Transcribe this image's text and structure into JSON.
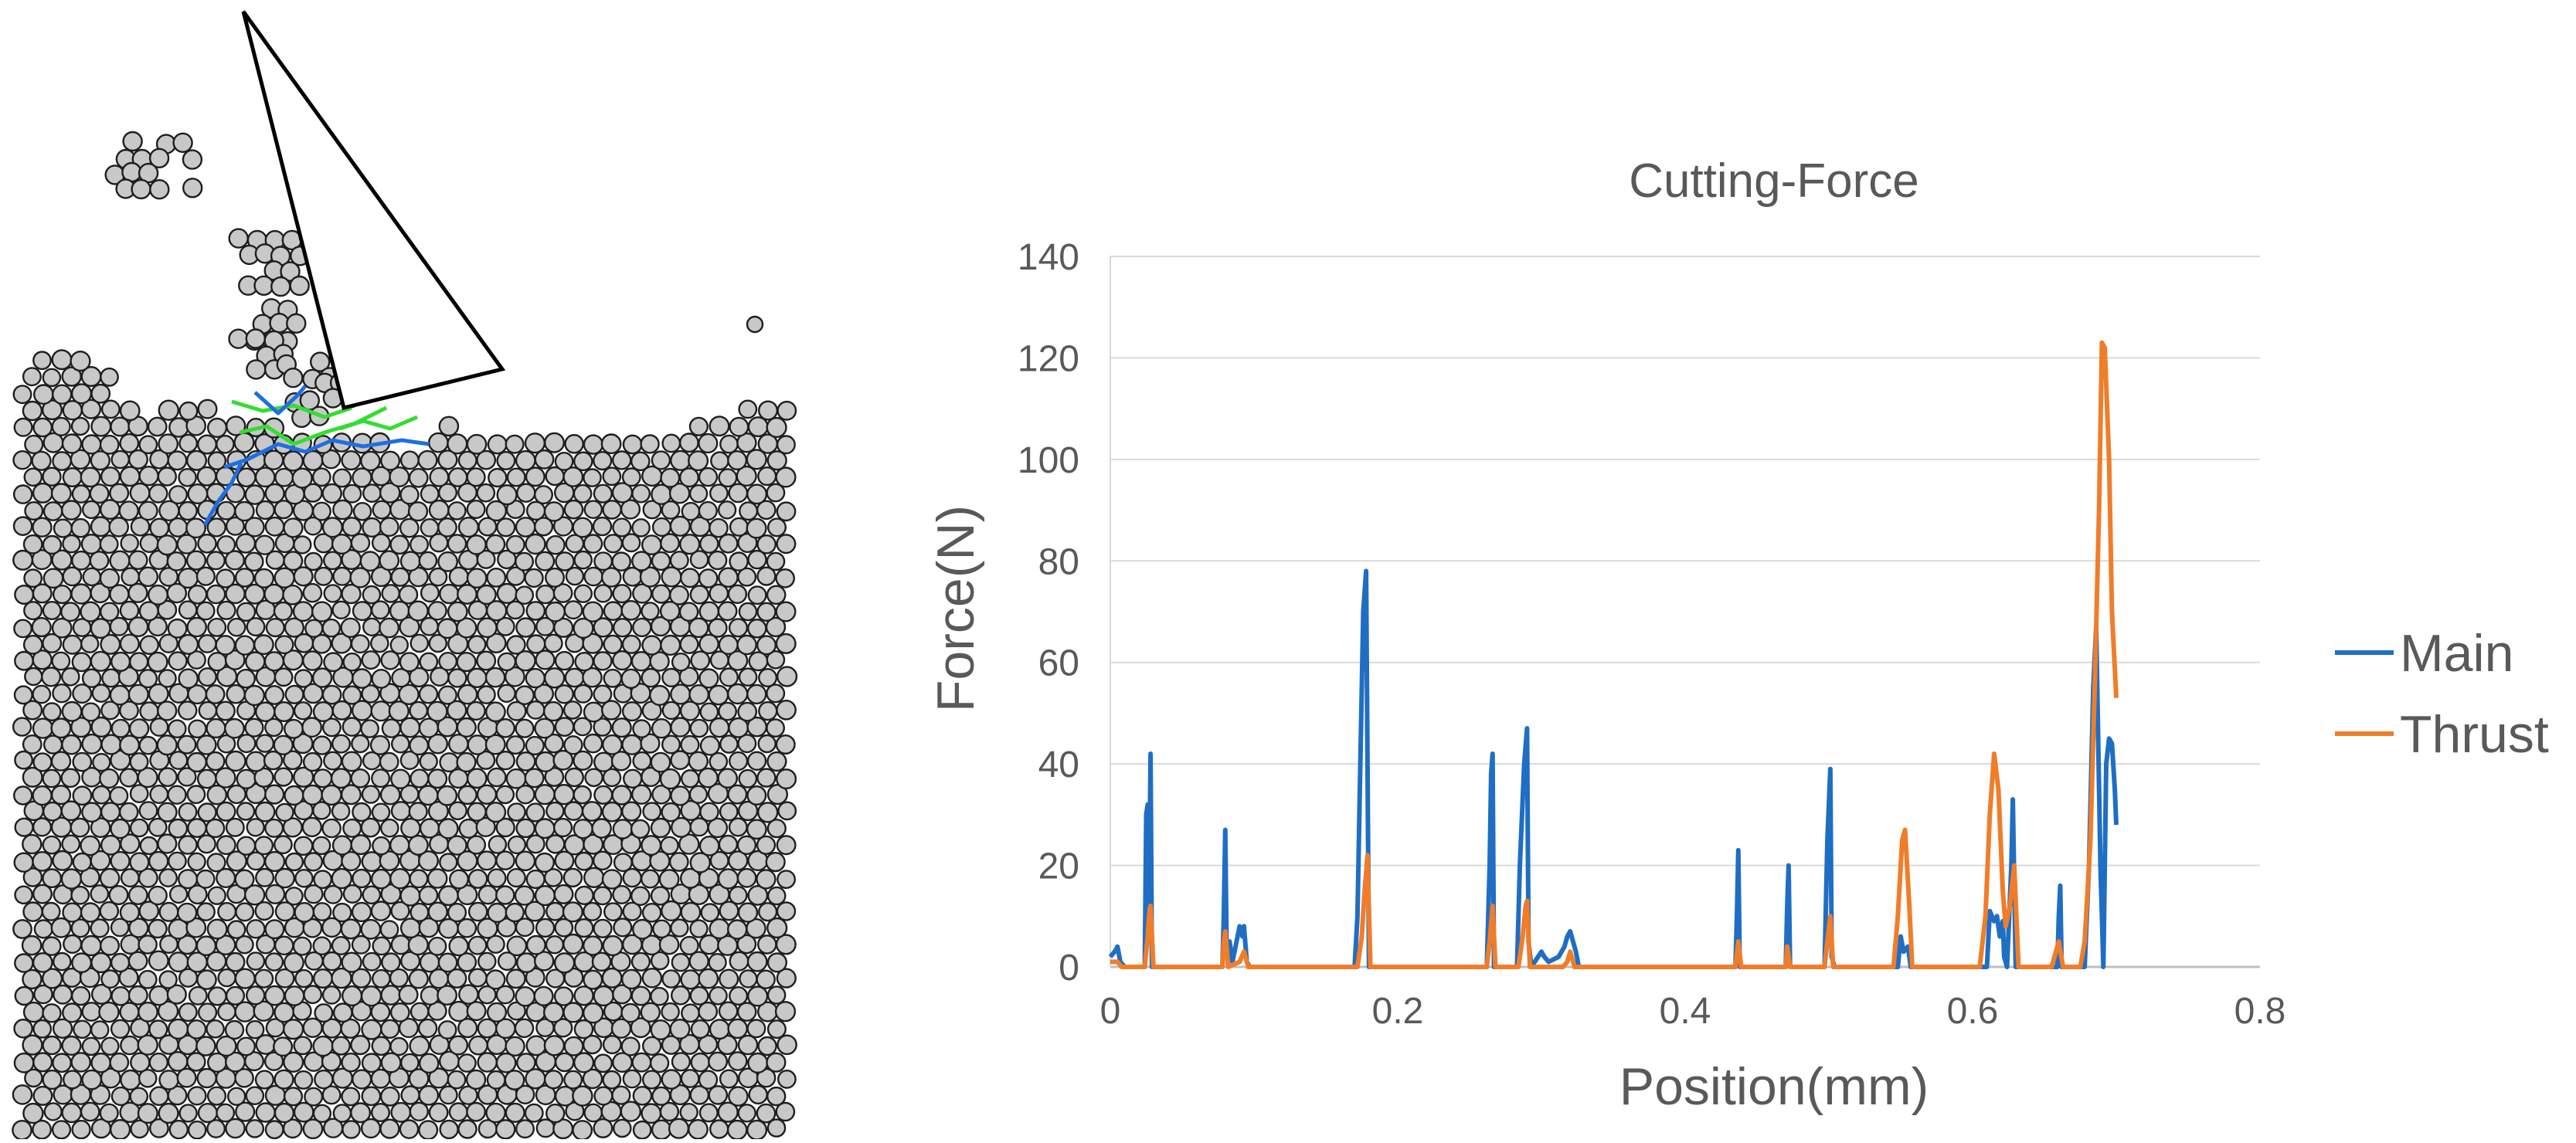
{
  "simulation": {
    "particle_fill": "#c8c8c8",
    "particle_stroke": "#1e1e1e",
    "tool_stroke": "#000000",
    "tool_fill": "#ffffff",
    "crack_colors": {
      "primary": "#1f6fe0",
      "secondary": "#33dd33"
    }
  },
  "chart_data": {
    "type": "line",
    "title": "Cutting-Force",
    "xlabel": "Position(mm)",
    "ylabel": "Force(N)",
    "xlim": [
      0,
      0.8
    ],
    "ylim": [
      0,
      140
    ],
    "xticks": [
      0,
      0.2,
      0.4,
      0.6,
      0.8
    ],
    "xtick_labels": [
      "0",
      "0.2",
      "0.4",
      "0.6",
      "0.8"
    ],
    "yticks": [
      0,
      20,
      40,
      60,
      80,
      100,
      120,
      140
    ],
    "ytick_labels": [
      "0",
      "20",
      "40",
      "60",
      "80",
      "100",
      "120",
      "140"
    ],
    "grid": "horizontal",
    "legend": "right",
    "series": [
      {
        "name": "Main",
        "color": "#1f6ec4",
        "points": [
          [
            0,
            2
          ],
          [
            0.003,
            3
          ],
          [
            0.005,
            4
          ],
          [
            0.007,
            1
          ],
          [
            0.01,
            0
          ],
          [
            0.024,
            0
          ],
          [
            0.025,
            30
          ],
          [
            0.026,
            32
          ],
          [
            0.027,
            12
          ],
          [
            0.028,
            42
          ],
          [
            0.029,
            0
          ],
          [
            0.078,
            0
          ],
          [
            0.079,
            10
          ],
          [
            0.08,
            27
          ],
          [
            0.081,
            2
          ],
          [
            0.083,
            5
          ],
          [
            0.085,
            1
          ],
          [
            0.09,
            8
          ],
          [
            0.092,
            6
          ],
          [
            0.093,
            8
          ],
          [
            0.095,
            1
          ],
          [
            0.097,
            0
          ],
          [
            0.17,
            0
          ],
          [
            0.172,
            10
          ],
          [
            0.174,
            40
          ],
          [
            0.176,
            70
          ],
          [
            0.178,
            78
          ],
          [
            0.18,
            0
          ],
          [
            0.262,
            0
          ],
          [
            0.264,
            20
          ],
          [
            0.265,
            38
          ],
          [
            0.266,
            42
          ],
          [
            0.267,
            0
          ],
          [
            0.283,
            0
          ],
          [
            0.285,
            20
          ],
          [
            0.288,
            40
          ],
          [
            0.29,
            47
          ],
          [
            0.291,
            5
          ],
          [
            0.293,
            0
          ],
          [
            0.3,
            3
          ],
          [
            0.302,
            2
          ],
          [
            0.305,
            1
          ],
          [
            0.312,
            2
          ],
          [
            0.316,
            4
          ],
          [
            0.318,
            6
          ],
          [
            0.32,
            7
          ],
          [
            0.322,
            5
          ],
          [
            0.324,
            3
          ],
          [
            0.326,
            0
          ],
          [
            0.435,
            0
          ],
          [
            0.436,
            10
          ],
          [
            0.437,
            23
          ],
          [
            0.438,
            0
          ],
          [
            0.47,
            0
          ],
          [
            0.471,
            12
          ],
          [
            0.472,
            20
          ],
          [
            0.473,
            0
          ],
          [
            0.497,
            0
          ],
          [
            0.499,
            25
          ],
          [
            0.501,
            39
          ],
          [
            0.502,
            2
          ],
          [
            0.504,
            0
          ],
          [
            0.548,
            0
          ],
          [
            0.55,
            6
          ],
          [
            0.552,
            3
          ],
          [
            0.555,
            4
          ],
          [
            0.557,
            0
          ],
          [
            0.61,
            0
          ],
          [
            0.612,
            11
          ],
          [
            0.615,
            9
          ],
          [
            0.617,
            10
          ],
          [
            0.619,
            6
          ],
          [
            0.621,
            9
          ],
          [
            0.622,
            2
          ],
          [
            0.624,
            0
          ],
          [
            0.627,
            20
          ],
          [
            0.628,
            33
          ],
          [
            0.63,
            0
          ],
          [
            0.659,
            0
          ],
          [
            0.66,
            10
          ],
          [
            0.661,
            16
          ],
          [
            0.662,
            0
          ],
          [
            0.678,
            0
          ],
          [
            0.681,
            20
          ],
          [
            0.684,
            55
          ],
          [
            0.686,
            67
          ],
          [
            0.689,
            20
          ],
          [
            0.691,
            0
          ],
          [
            0.693,
            40
          ],
          [
            0.695,
            45
          ],
          [
            0.697,
            44
          ],
          [
            0.699,
            35
          ],
          [
            0.7,
            28
          ]
        ]
      },
      {
        "name": "Thrust",
        "color": "#f07d2a",
        "points": [
          [
            0,
            1
          ],
          [
            0.005,
            1
          ],
          [
            0.008,
            0
          ],
          [
            0.024,
            0
          ],
          [
            0.026,
            6
          ],
          [
            0.027,
            10
          ],
          [
            0.028,
            12
          ],
          [
            0.03,
            0
          ],
          [
            0.078,
            0
          ],
          [
            0.079,
            5
          ],
          [
            0.08,
            7
          ],
          [
            0.082,
            0
          ],
          [
            0.09,
            1
          ],
          [
            0.093,
            3
          ],
          [
            0.096,
            0
          ],
          [
            0.172,
            0
          ],
          [
            0.175,
            6
          ],
          [
            0.177,
            15
          ],
          [
            0.179,
            22
          ],
          [
            0.181,
            0
          ],
          [
            0.262,
            0
          ],
          [
            0.264,
            5
          ],
          [
            0.266,
            12
          ],
          [
            0.268,
            0
          ],
          [
            0.284,
            0
          ],
          [
            0.287,
            6
          ],
          [
            0.289,
            12
          ],
          [
            0.29,
            13
          ],
          [
            0.292,
            0
          ],
          [
            0.315,
            0
          ],
          [
            0.318,
            1
          ],
          [
            0.32,
            3
          ],
          [
            0.323,
            0
          ],
          [
            0.435,
            0
          ],
          [
            0.437,
            5
          ],
          [
            0.439,
            0
          ],
          [
            0.47,
            0
          ],
          [
            0.471,
            4
          ],
          [
            0.473,
            0
          ],
          [
            0.497,
            0
          ],
          [
            0.499,
            5
          ],
          [
            0.501,
            10
          ],
          [
            0.503,
            0
          ],
          [
            0.545,
            0
          ],
          [
            0.548,
            10
          ],
          [
            0.551,
            25
          ],
          [
            0.553,
            27
          ],
          [
            0.556,
            12
          ],
          [
            0.558,
            0
          ],
          [
            0.605,
            0
          ],
          [
            0.609,
            10
          ],
          [
            0.612,
            30
          ],
          [
            0.615,
            42
          ],
          [
            0.618,
            35
          ],
          [
            0.621,
            15
          ],
          [
            0.623,
            8
          ],
          [
            0.626,
            12
          ],
          [
            0.629,
            20
          ],
          [
            0.632,
            0
          ],
          [
            0.655,
            0
          ],
          [
            0.658,
            3
          ],
          [
            0.66,
            5
          ],
          [
            0.663,
            0
          ],
          [
            0.675,
            0
          ],
          [
            0.678,
            5
          ],
          [
            0.682,
            25
          ],
          [
            0.685,
            55
          ],
          [
            0.688,
            90
          ],
          [
            0.69,
            123
          ],
          [
            0.692,
            122
          ],
          [
            0.695,
            100
          ],
          [
            0.697,
            70
          ],
          [
            0.7,
            53
          ]
        ]
      }
    ]
  }
}
